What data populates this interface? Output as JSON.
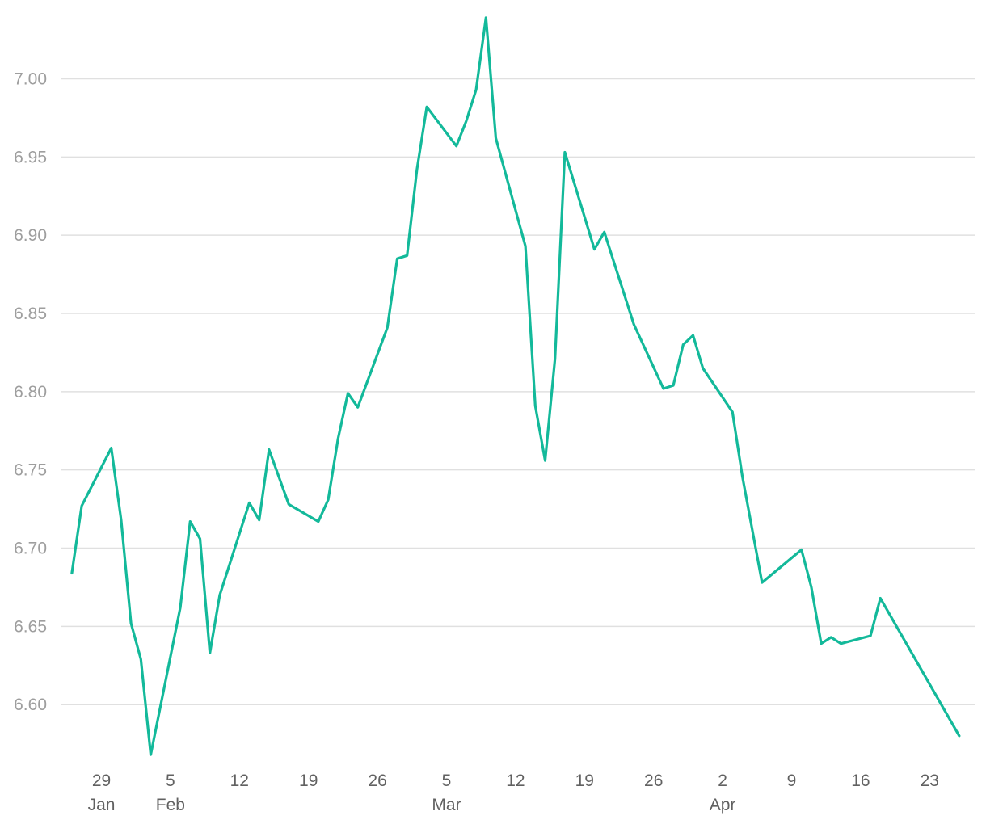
{
  "chart_data": {
    "type": "line",
    "x_axis": {
      "type": "date",
      "year": "",
      "ticks": [
        {
          "date": "01-29",
          "day": "29",
          "month": "Jan"
        },
        {
          "date": "02-05",
          "day": "5",
          "month": "Feb"
        },
        {
          "date": "02-12",
          "day": "12",
          "month": ""
        },
        {
          "date": "02-19",
          "day": "19",
          "month": ""
        },
        {
          "date": "02-26",
          "day": "26",
          "month": ""
        },
        {
          "date": "03-05",
          "day": "5",
          "month": "Mar"
        },
        {
          "date": "03-12",
          "day": "12",
          "month": ""
        },
        {
          "date": "03-19",
          "day": "19",
          "month": ""
        },
        {
          "date": "03-26",
          "day": "26",
          "month": ""
        },
        {
          "date": "04-02",
          "day": "2",
          "month": "Apr"
        },
        {
          "date": "04-09",
          "day": "9",
          "month": ""
        },
        {
          "date": "04-16",
          "day": "16",
          "month": ""
        },
        {
          "date": "04-23",
          "day": "23",
          "month": ""
        }
      ]
    },
    "y_axis": {
      "ylim": [
        6.565,
        7.04
      ],
      "ticks": [
        "6.60",
        "6.65",
        "6.70",
        "6.75",
        "6.80",
        "6.85",
        "6.90",
        "6.95",
        "7.00"
      ]
    },
    "grid": "horizontal",
    "legend": "none",
    "series": [
      {
        "color": "#13b99a",
        "points": [
          [
            "01-26",
            6.684
          ],
          [
            "01-27",
            6.727
          ],
          [
            "01-30",
            6.764
          ],
          [
            "01-31",
            6.718
          ],
          [
            "02-01",
            6.652
          ],
          [
            "02-02",
            6.629
          ],
          [
            "02-03",
            6.568
          ],
          [
            "02-06",
            6.662
          ],
          [
            "02-07",
            6.717
          ],
          [
            "02-08",
            6.706
          ],
          [
            "02-09",
            6.633
          ],
          [
            "02-10",
            6.67
          ],
          [
            "02-13",
            6.729
          ],
          [
            "02-14",
            6.718
          ],
          [
            "02-15",
            6.763
          ],
          [
            "02-17",
            6.728
          ],
          [
            "02-20",
            6.717
          ],
          [
            "02-21",
            6.731
          ],
          [
            "02-22",
            6.77
          ],
          [
            "02-23",
            6.799
          ],
          [
            "02-24",
            6.79
          ],
          [
            "02-27",
            6.841
          ],
          [
            "02-28",
            6.885
          ],
          [
            "03-01",
            6.887
          ],
          [
            "03-02",
            6.942
          ],
          [
            "03-03",
            6.982
          ],
          [
            "03-06",
            6.957
          ],
          [
            "03-07",
            6.973
          ],
          [
            "03-08",
            6.993
          ],
          [
            "03-09",
            7.039
          ],
          [
            "03-10",
            6.962
          ],
          [
            "03-13",
            6.893
          ],
          [
            "03-14",
            6.791
          ],
          [
            "03-15",
            6.756
          ],
          [
            "03-16",
            6.821
          ],
          [
            "03-17",
            6.953
          ],
          [
            "03-20",
            6.891
          ],
          [
            "03-21",
            6.902
          ],
          [
            "03-24",
            6.843
          ],
          [
            "03-27",
            6.802
          ],
          [
            "03-28",
            6.804
          ],
          [
            "03-29",
            6.83
          ],
          [
            "03-30",
            6.836
          ],
          [
            "03-31",
            6.815
          ],
          [
            "04-03",
            6.787
          ],
          [
            "04-04",
            6.746
          ],
          [
            "04-06",
            6.678
          ],
          [
            "04-10",
            6.699
          ],
          [
            "04-11",
            6.675
          ],
          [
            "04-12",
            6.639
          ],
          [
            "04-13",
            6.643
          ],
          [
            "04-14",
            6.639
          ],
          [
            "04-17",
            6.644
          ],
          [
            "04-18",
            6.668
          ],
          [
            "04-26",
            6.58
          ]
        ]
      }
    ]
  }
}
